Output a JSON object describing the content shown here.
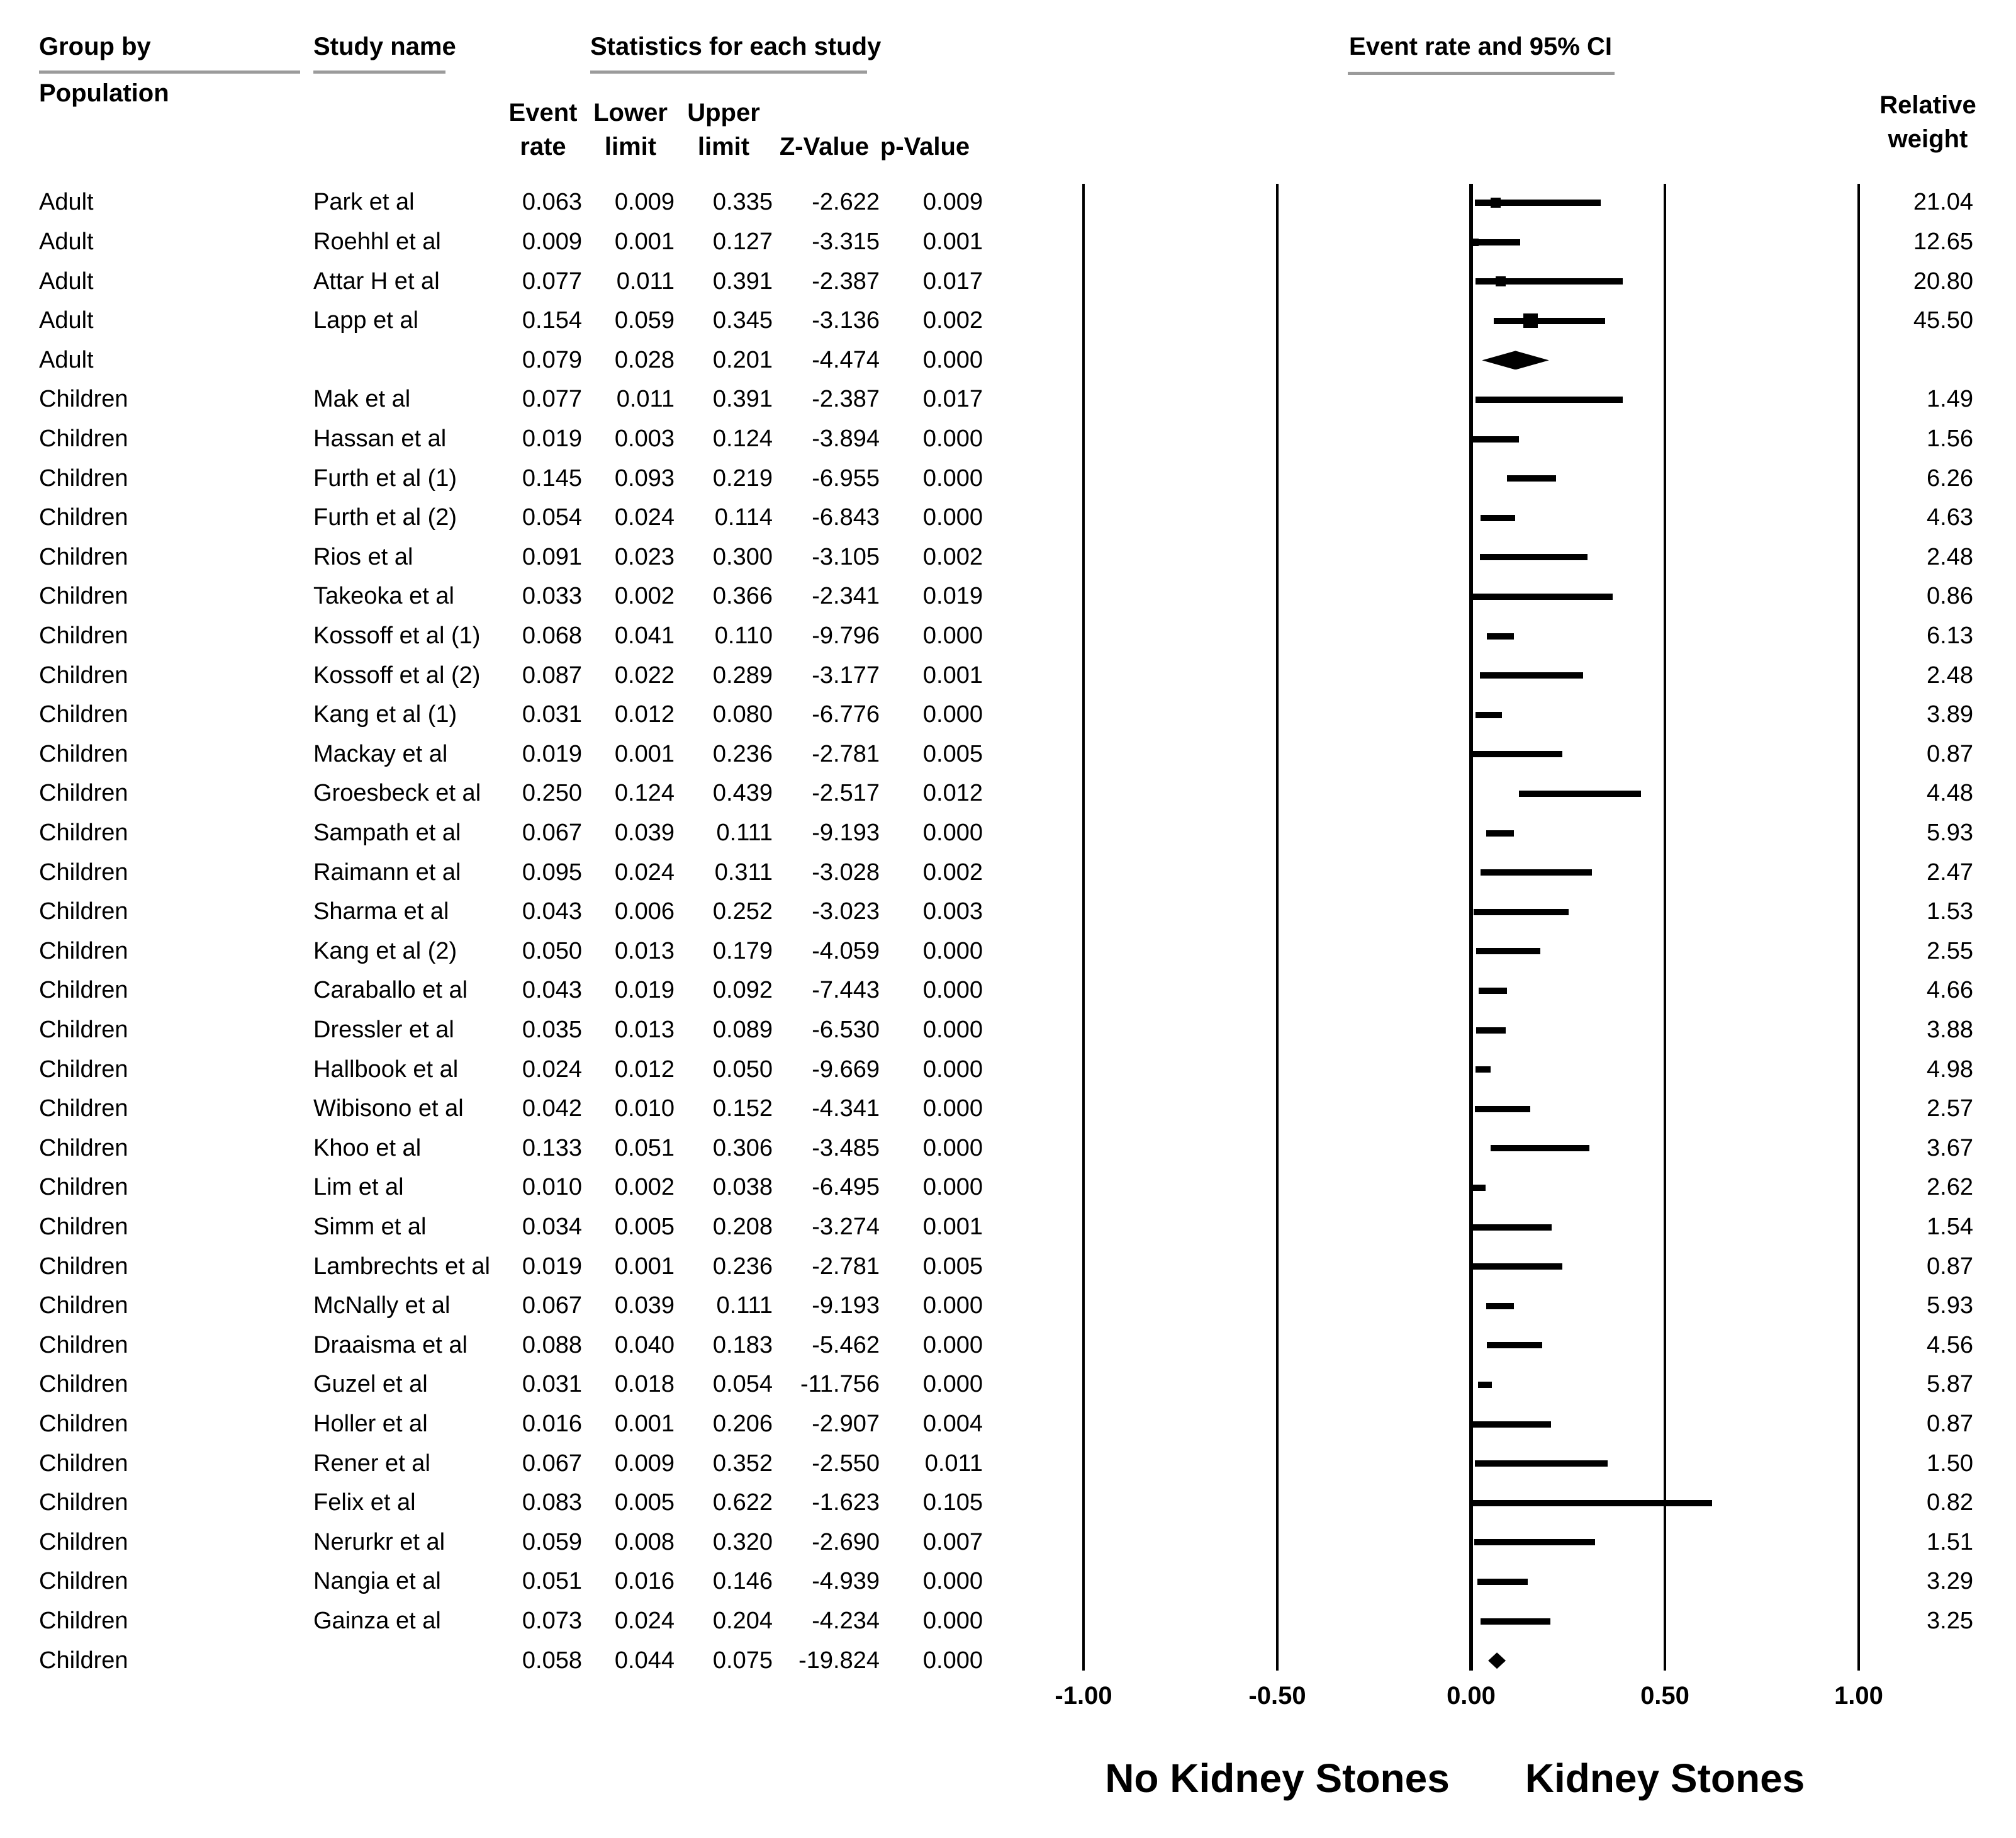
{
  "header": {
    "group_by_line1": "Group by",
    "group_by_line2": "Population",
    "study_name": "Study name",
    "stats_title": "Statistics for each study",
    "plot_title": "Event rate and 95% CI"
  },
  "sub_headers": {
    "event_l1": "Event",
    "event_l2": "rate",
    "lower_l1": "Lower",
    "lower_l2": "limit",
    "upper_l1": "Upper",
    "upper_l2": "limit",
    "z": "Z-Value",
    "p": "p-Value",
    "weight_l1": "Relative",
    "weight_l2": "weight"
  },
  "axis": {
    "left_label": "No Kidney Stones",
    "right_label": "Kidney Stones"
  },
  "chart_data": {
    "type": "forest",
    "xlim": [
      -1,
      1
    ],
    "x_ticks": [
      {
        "label": "-1.00",
        "value": -1.0
      },
      {
        "label": "-0.50",
        "value": -0.5
      },
      {
        "label": "0.00",
        "value": 0.0
      },
      {
        "label": "0.50",
        "value": 0.5
      },
      {
        "label": "1.00",
        "value": 1.0
      }
    ],
    "columns": [
      "Group by Population",
      "Study name",
      "Event rate",
      "Lower limit",
      "Upper limit",
      "Z-Value",
      "p-Value",
      "Relative weight"
    ],
    "rows": [
      {
        "group": "Adult",
        "study": "Park et al",
        "event_rate": "0.063",
        "lower": "0.009",
        "upper": "0.335",
        "z": "-2.622",
        "p": "0.009",
        "weight": "21.04",
        "summary": false
      },
      {
        "group": "Adult",
        "study": "Roehhl et al",
        "event_rate": "0.009",
        "lower": "0.001",
        "upper": "0.127",
        "z": "-3.315",
        "p": "0.001",
        "weight": "12.65",
        "summary": false
      },
      {
        "group": "Adult",
        "study": "Attar H et al",
        "event_rate": "0.077",
        "lower": "0.011",
        "upper": "0.391",
        "z": "-2.387",
        "p": "0.017",
        "weight": "20.80",
        "summary": false
      },
      {
        "group": "Adult",
        "study": "Lapp et al",
        "event_rate": "0.154",
        "lower": "0.059",
        "upper": "0.345",
        "z": "-3.136",
        "p": "0.002",
        "weight": "45.50",
        "summary": false
      },
      {
        "group": "Adult",
        "study": "",
        "event_rate": "0.079",
        "lower": "0.028",
        "upper": "0.201",
        "z": "-4.474",
        "p": "0.000",
        "weight": "",
        "summary": true
      },
      {
        "group": "Children",
        "study": "Mak et al",
        "event_rate": "0.077",
        "lower": "0.011",
        "upper": "0.391",
        "z": "-2.387",
        "p": "0.017",
        "weight": "1.49",
        "summary": false
      },
      {
        "group": "Children",
        "study": "Hassan et al",
        "event_rate": "0.019",
        "lower": "0.003",
        "upper": "0.124",
        "z": "-3.894",
        "p": "0.000",
        "weight": "1.56",
        "summary": false
      },
      {
        "group": "Children",
        "study": "Furth et al (1)",
        "event_rate": "0.145",
        "lower": "0.093",
        "upper": "0.219",
        "z": "-6.955",
        "p": "0.000",
        "weight": "6.26",
        "summary": false
      },
      {
        "group": "Children",
        "study": "Furth et al (2)",
        "event_rate": "0.054",
        "lower": "0.024",
        "upper": "0.114",
        "z": "-6.843",
        "p": "0.000",
        "weight": "4.63",
        "summary": false
      },
      {
        "group": "Children",
        "study": "Rios et al",
        "event_rate": "0.091",
        "lower": "0.023",
        "upper": "0.300",
        "z": "-3.105",
        "p": "0.002",
        "weight": "2.48",
        "summary": false
      },
      {
        "group": "Children",
        "study": "Takeoka et al",
        "event_rate": "0.033",
        "lower": "0.002",
        "upper": "0.366",
        "z": "-2.341",
        "p": "0.019",
        "weight": "0.86",
        "summary": false
      },
      {
        "group": "Children",
        "study": "Kossoff et al (1)",
        "event_rate": "0.068",
        "lower": "0.041",
        "upper": "0.110",
        "z": "-9.796",
        "p": "0.000",
        "weight": "6.13",
        "summary": false
      },
      {
        "group": "Children",
        "study": "Kossoff et al (2)",
        "event_rate": "0.087",
        "lower": "0.022",
        "upper": "0.289",
        "z": "-3.177",
        "p": "0.001",
        "weight": "2.48",
        "summary": false
      },
      {
        "group": "Children",
        "study": "Kang et al (1)",
        "event_rate": "0.031",
        "lower": "0.012",
        "upper": "0.080",
        "z": "-6.776",
        "p": "0.000",
        "weight": "3.89",
        "summary": false
      },
      {
        "group": "Children",
        "study": "Mackay et al",
        "event_rate": "0.019",
        "lower": "0.001",
        "upper": "0.236",
        "z": "-2.781",
        "p": "0.005",
        "weight": "0.87",
        "summary": false
      },
      {
        "group": "Children",
        "study": "Groesbeck et al",
        "event_rate": "0.250",
        "lower": "0.124",
        "upper": "0.439",
        "z": "-2.517",
        "p": "0.012",
        "weight": "4.48",
        "summary": false
      },
      {
        "group": "Children",
        "study": "Sampath et al",
        "event_rate": "0.067",
        "lower": "0.039",
        "upper": "0.111",
        "z": "-9.193",
        "p": "0.000",
        "weight": "5.93",
        "summary": false
      },
      {
        "group": "Children",
        "study": "Raimann et al",
        "event_rate": "0.095",
        "lower": "0.024",
        "upper": "0.311",
        "z": "-3.028",
        "p": "0.002",
        "weight": "2.47",
        "summary": false
      },
      {
        "group": "Children",
        "study": "Sharma et al",
        "event_rate": "0.043",
        "lower": "0.006",
        "upper": "0.252",
        "z": "-3.023",
        "p": "0.003",
        "weight": "1.53",
        "summary": false
      },
      {
        "group": "Children",
        "study": "Kang et al (2)",
        "event_rate": "0.050",
        "lower": "0.013",
        "upper": "0.179",
        "z": "-4.059",
        "p": "0.000",
        "weight": "2.55",
        "summary": false
      },
      {
        "group": "Children",
        "study": "Caraballo et al",
        "event_rate": "0.043",
        "lower": "0.019",
        "upper": "0.092",
        "z": "-7.443",
        "p": "0.000",
        "weight": "4.66",
        "summary": false
      },
      {
        "group": "Children",
        "study": "Dressler et al",
        "event_rate": "0.035",
        "lower": "0.013",
        "upper": "0.089",
        "z": "-6.530",
        "p": "0.000",
        "weight": "3.88",
        "summary": false
      },
      {
        "group": "Children",
        "study": "Hallbook et al",
        "event_rate": "0.024",
        "lower": "0.012",
        "upper": "0.050",
        "z": "-9.669",
        "p": "0.000",
        "weight": "4.98",
        "summary": false
      },
      {
        "group": "Children",
        "study": "Wibisono et al",
        "event_rate": "0.042",
        "lower": "0.010",
        "upper": "0.152",
        "z": "-4.341",
        "p": "0.000",
        "weight": "2.57",
        "summary": false
      },
      {
        "group": "Children",
        "study": "Khoo et al",
        "event_rate": "0.133",
        "lower": "0.051",
        "upper": "0.306",
        "z": "-3.485",
        "p": "0.000",
        "weight": "3.67",
        "summary": false
      },
      {
        "group": "Children",
        "study": "Lim et al",
        "event_rate": "0.010",
        "lower": "0.002",
        "upper": "0.038",
        "z": "-6.495",
        "p": "0.000",
        "weight": "2.62",
        "summary": false
      },
      {
        "group": "Children",
        "study": "Simm et al",
        "event_rate": "0.034",
        "lower": "0.005",
        "upper": "0.208",
        "z": "-3.274",
        "p": "0.001",
        "weight": "1.54",
        "summary": false
      },
      {
        "group": "Children",
        "study": "Lambrechts et al",
        "event_rate": "0.019",
        "lower": "0.001",
        "upper": "0.236",
        "z": "-2.781",
        "p": "0.005",
        "weight": "0.87",
        "summary": false
      },
      {
        "group": "Children",
        "study": "McNally et al",
        "event_rate": "0.067",
        "lower": "0.039",
        "upper": "0.111",
        "z": "-9.193",
        "p": "0.000",
        "weight": "5.93",
        "summary": false
      },
      {
        "group": "Children",
        "study": "Draaisma et al",
        "event_rate": "0.088",
        "lower": "0.040",
        "upper": "0.183",
        "z": "-5.462",
        "p": "0.000",
        "weight": "4.56",
        "summary": false
      },
      {
        "group": "Children",
        "study": "Guzel et al",
        "event_rate": "0.031",
        "lower": "0.018",
        "upper": "0.054",
        "z": "-11.756",
        "p": "0.000",
        "weight": "5.87",
        "summary": false
      },
      {
        "group": "Children",
        "study": "Holler et al",
        "event_rate": "0.016",
        "lower": "0.001",
        "upper": "0.206",
        "z": "-2.907",
        "p": "0.004",
        "weight": "0.87",
        "summary": false
      },
      {
        "group": "Children",
        "study": "Rener et al",
        "event_rate": "0.067",
        "lower": "0.009",
        "upper": "0.352",
        "z": "-2.550",
        "p": "0.011",
        "weight": "1.50",
        "summary": false
      },
      {
        "group": "Children",
        "study": "Felix et al",
        "event_rate": "0.083",
        "lower": "0.005",
        "upper": "0.622",
        "z": "-1.623",
        "p": "0.105",
        "weight": "0.82",
        "summary": false
      },
      {
        "group": "Children",
        "study": "Nerurkr et al",
        "event_rate": "0.059",
        "lower": "0.008",
        "upper": "0.320",
        "z": "-2.690",
        "p": "0.007",
        "weight": "1.51",
        "summary": false
      },
      {
        "group": "Children",
        "study": "Nangia et al",
        "event_rate": "0.051",
        "lower": "0.016",
        "upper": "0.146",
        "z": "-4.939",
        "p": "0.000",
        "weight": "3.29",
        "summary": false
      },
      {
        "group": "Children",
        "study": "Gainza et al",
        "event_rate": "0.073",
        "lower": "0.024",
        "upper": "0.204",
        "z": "-4.234",
        "p": "0.000",
        "weight": "3.25",
        "summary": false
      },
      {
        "group": "Children",
        "study": "",
        "event_rate": "0.058",
        "lower": "0.044",
        "upper": "0.075",
        "z": "-19.824",
        "p": "0.000",
        "weight": "",
        "summary": true
      }
    ]
  }
}
